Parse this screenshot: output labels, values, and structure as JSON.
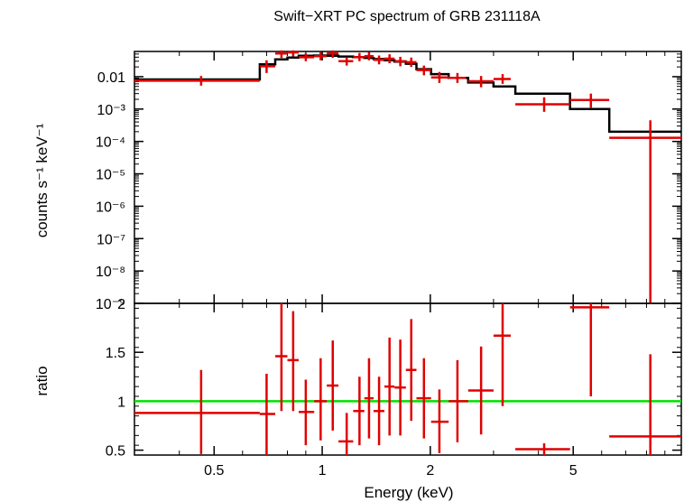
{
  "chart_data": {
    "type": "scatter",
    "title": "Swift−XRT PC spectrum of GRB 231118A",
    "xlabel": "Energy (keV)",
    "x_scale": "log",
    "xlim": [
      0.3,
      10
    ],
    "x_ticks": [
      {
        "value": 0.5,
        "label": "0.5"
      },
      {
        "value": 1,
        "label": "1"
      },
      {
        "value": 2,
        "label": "2"
      },
      {
        "value": 5,
        "label": "5"
      }
    ],
    "panels": [
      {
        "name": "spectrum",
        "ylabel": "counts s⁻¹ keV⁻¹",
        "y_scale": "log",
        "ylim": [
          1e-09,
          0.06
        ],
        "y_ticks": [
          {
            "value": 0.01,
            "label": "0.01"
          },
          {
            "value": 0.001,
            "label": "10⁻³"
          },
          {
            "value": 0.0001,
            "label": "10⁻⁴"
          },
          {
            "value": 1e-05,
            "label": "10⁻⁵"
          },
          {
            "value": 1e-06,
            "label": "10⁻⁶"
          },
          {
            "value": 1e-07,
            "label": "10⁻⁷"
          },
          {
            "value": 1e-08,
            "label": "10⁻⁸"
          },
          {
            "value": 1e-09,
            "label": "10⁻⁹"
          }
        ],
        "data_color": "#e00000",
        "model_color": "#000000",
        "data": [
          {
            "x": 0.46,
            "xlo": 0.3,
            "xhi": 0.67,
            "y": 0.0075,
            "ylo": 0.0053,
            "yhi": 0.0105
          },
          {
            "x": 0.7,
            "xlo": 0.67,
            "xhi": 0.74,
            "y": 0.021,
            "ylo": 0.013,
            "yhi": 0.032
          },
          {
            "x": 0.77,
            "xlo": 0.74,
            "xhi": 0.8,
            "y": 0.052,
            "ylo": 0.038,
            "yhi": 0.065
          },
          {
            "x": 0.83,
            "xlo": 0.8,
            "xhi": 0.86,
            "y": 0.056,
            "ylo": 0.042,
            "yhi": 0.065
          },
          {
            "x": 0.9,
            "xlo": 0.86,
            "xhi": 0.95,
            "y": 0.04,
            "ylo": 0.03,
            "yhi": 0.053
          },
          {
            "x": 0.99,
            "xlo": 0.95,
            "xhi": 1.03,
            "y": 0.043,
            "ylo": 0.032,
            "yhi": 0.057
          },
          {
            "x": 1.07,
            "xlo": 1.03,
            "xhi": 1.11,
            "y": 0.052,
            "ylo": 0.038,
            "yhi": 0.065
          },
          {
            "x": 1.17,
            "xlo": 1.11,
            "xhi": 1.22,
            "y": 0.03,
            "ylo": 0.022,
            "yhi": 0.04
          },
          {
            "x": 1.27,
            "xlo": 1.22,
            "xhi": 1.31,
            "y": 0.04,
            "ylo": 0.03,
            "yhi": 0.054
          },
          {
            "x": 1.35,
            "xlo": 1.31,
            "xhi": 1.39,
            "y": 0.043,
            "ylo": 0.032,
            "yhi": 0.058
          },
          {
            "x": 1.44,
            "xlo": 1.39,
            "xhi": 1.49,
            "y": 0.033,
            "ylo": 0.024,
            "yhi": 0.045
          },
          {
            "x": 1.54,
            "xlo": 1.49,
            "xhi": 1.59,
            "y": 0.036,
            "ylo": 0.026,
            "yhi": 0.049
          },
          {
            "x": 1.65,
            "xlo": 1.59,
            "xhi": 1.71,
            "y": 0.03,
            "ylo": 0.021,
            "yhi": 0.041
          },
          {
            "x": 1.77,
            "xlo": 1.71,
            "xhi": 1.83,
            "y": 0.028,
            "ylo": 0.02,
            "yhi": 0.039
          },
          {
            "x": 1.92,
            "xlo": 1.83,
            "xhi": 2.01,
            "y": 0.016,
            "ylo": 0.011,
            "yhi": 0.022
          },
          {
            "x": 2.12,
            "xlo": 2.01,
            "xhi": 2.25,
            "y": 0.0095,
            "ylo": 0.0064,
            "yhi": 0.014
          },
          {
            "x": 2.38,
            "xlo": 2.25,
            "xhi": 2.51,
            "y": 0.0092,
            "ylo": 0.0064,
            "yhi": 0.013
          },
          {
            "x": 2.77,
            "xlo": 2.55,
            "xhi": 3.0,
            "y": 0.0072,
            "ylo": 0.0047,
            "yhi": 0.0105
          },
          {
            "x": 3.18,
            "xlo": 3.0,
            "xhi": 3.35,
            "y": 0.0085,
            "ylo": 0.006,
            "yhi": 0.012
          },
          {
            "x": 4.15,
            "xlo": 3.45,
            "xhi": 4.9,
            "y": 0.0014,
            "ylo": 0.00082,
            "yhi": 0.0023
          },
          {
            "x": 5.6,
            "xlo": 4.9,
            "xhi": 6.3,
            "y": 0.0019,
            "ylo": 0.0011,
            "yhi": 0.003
          },
          {
            "x": 8.2,
            "xlo": 6.3,
            "xhi": 10.0,
            "y": 0.00013,
            "ylo": 1e-09,
            "yhi": 0.00045
          }
        ],
        "model": [
          {
            "xlo": 0.3,
            "xhi": 0.67,
            "y": 0.0082
          },
          {
            "xlo": 0.67,
            "xhi": 0.74,
            "y": 0.024
          },
          {
            "xlo": 0.74,
            "xhi": 0.8,
            "y": 0.034
          },
          {
            "xlo": 0.8,
            "xhi": 0.86,
            "y": 0.039
          },
          {
            "xlo": 0.86,
            "xhi": 0.95,
            "y": 0.044
          },
          {
            "xlo": 0.95,
            "xhi": 1.03,
            "y": 0.045
          },
          {
            "xlo": 1.03,
            "xhi": 1.11,
            "y": 0.044
          },
          {
            "xlo": 1.11,
            "xhi": 1.22,
            "y": 0.042
          },
          {
            "xlo": 1.22,
            "xhi": 1.31,
            "y": 0.04
          },
          {
            "xlo": 1.31,
            "xhi": 1.39,
            "y": 0.038
          },
          {
            "xlo": 1.39,
            "xhi": 1.49,
            "y": 0.035
          },
          {
            "xlo": 1.49,
            "xhi": 1.59,
            "y": 0.032
          },
          {
            "xlo": 1.59,
            "xhi": 1.71,
            "y": 0.029
          },
          {
            "xlo": 1.71,
            "xhi": 1.83,
            "y": 0.025
          },
          {
            "xlo": 1.83,
            "xhi": 2.01,
            "y": 0.017
          },
          {
            "xlo": 2.01,
            "xhi": 2.25,
            "y": 0.012
          },
          {
            "xlo": 2.25,
            "xhi": 2.55,
            "y": 0.0092
          },
          {
            "xlo": 2.55,
            "xhi": 3.0,
            "y": 0.0066
          },
          {
            "xlo": 3.0,
            "xhi": 3.45,
            "y": 0.005
          },
          {
            "xlo": 3.45,
            "xhi": 4.9,
            "y": 0.003
          },
          {
            "xlo": 4.9,
            "xhi": 6.3,
            "y": 0.001
          },
          {
            "xlo": 6.3,
            "xhi": 10.0,
            "y": 0.0002
          }
        ]
      },
      {
        "name": "ratio",
        "ylabel": "ratio",
        "y_scale": "linear",
        "ylim": [
          0.45,
          2.0
        ],
        "y_ticks": [
          {
            "value": 0.5,
            "label": "0.5"
          },
          {
            "value": 1,
            "label": "1"
          },
          {
            "value": 1.5,
            "label": "1.5"
          },
          {
            "value": 2,
            "label": "2"
          }
        ],
        "reference_line": {
          "y": 1,
          "color": "#00e000"
        },
        "data_color": "#e00000",
        "data": [
          {
            "x": 0.46,
            "xlo": 0.3,
            "xhi": 0.67,
            "y": 0.88,
            "ylo": 0.46,
            "yhi": 1.32
          },
          {
            "x": 0.7,
            "xlo": 0.67,
            "xhi": 0.74,
            "y": 0.87,
            "ylo": 0.45,
            "yhi": 1.28
          },
          {
            "x": 0.77,
            "xlo": 0.74,
            "xhi": 0.8,
            "y": 1.46,
            "ylo": 0.9,
            "yhi": 2.0
          },
          {
            "x": 0.83,
            "xlo": 0.8,
            "xhi": 0.86,
            "y": 1.42,
            "ylo": 0.9,
            "yhi": 1.92
          },
          {
            "x": 0.9,
            "xlo": 0.86,
            "xhi": 0.95,
            "y": 0.89,
            "ylo": 0.55,
            "yhi": 1.22
          },
          {
            "x": 0.99,
            "xlo": 0.95,
            "xhi": 1.03,
            "y": 1.0,
            "ylo": 0.6,
            "yhi": 1.44
          },
          {
            "x": 1.07,
            "xlo": 1.03,
            "xhi": 1.11,
            "y": 1.16,
            "ylo": 0.7,
            "yhi": 1.62
          },
          {
            "x": 1.17,
            "xlo": 1.11,
            "xhi": 1.22,
            "y": 0.59,
            "ylo": 0.45,
            "yhi": 0.88
          },
          {
            "x": 1.27,
            "xlo": 1.22,
            "xhi": 1.31,
            "y": 0.9,
            "ylo": 0.55,
            "yhi": 1.25
          },
          {
            "x": 1.35,
            "xlo": 1.31,
            "xhi": 1.39,
            "y": 1.03,
            "ylo": 0.62,
            "yhi": 1.44
          },
          {
            "x": 1.44,
            "xlo": 1.39,
            "xhi": 1.49,
            "y": 0.9,
            "ylo": 0.55,
            "yhi": 1.25
          },
          {
            "x": 1.54,
            "xlo": 1.49,
            "xhi": 1.59,
            "y": 1.15,
            "ylo": 0.65,
            "yhi": 1.65
          },
          {
            "x": 1.65,
            "xlo": 1.59,
            "xhi": 1.71,
            "y": 1.14,
            "ylo": 0.65,
            "yhi": 1.63
          },
          {
            "x": 1.77,
            "xlo": 1.71,
            "xhi": 1.83,
            "y": 1.32,
            "ylo": 0.8,
            "yhi": 1.84
          },
          {
            "x": 1.92,
            "xlo": 1.83,
            "xhi": 2.01,
            "y": 1.03,
            "ylo": 0.62,
            "yhi": 1.44
          },
          {
            "x": 2.12,
            "xlo": 2.01,
            "xhi": 2.25,
            "y": 0.79,
            "ylo": 0.47,
            "yhi": 1.12
          },
          {
            "x": 2.38,
            "xlo": 2.25,
            "xhi": 2.55,
            "y": 1.0,
            "ylo": 0.58,
            "yhi": 1.42
          },
          {
            "x": 2.77,
            "xlo": 2.55,
            "xhi": 3.0,
            "y": 1.11,
            "ylo": 0.66,
            "yhi": 1.56
          },
          {
            "x": 3.18,
            "xlo": 3.0,
            "xhi": 3.35,
            "y": 1.67,
            "ylo": 0.95,
            "yhi": 2.0
          },
          {
            "x": 4.15,
            "xlo": 3.45,
            "xhi": 4.9,
            "y": 0.51,
            "ylo": 0.45,
            "yhi": 0.57
          },
          {
            "x": 5.6,
            "xlo": 4.9,
            "xhi": 6.3,
            "y": 1.96,
            "ylo": 1.05,
            "yhi": 2.0
          },
          {
            "x": 8.2,
            "xlo": 6.3,
            "xhi": 10.0,
            "y": 0.64,
            "ylo": 0.45,
            "yhi": 1.48
          }
        ]
      }
    ]
  }
}
